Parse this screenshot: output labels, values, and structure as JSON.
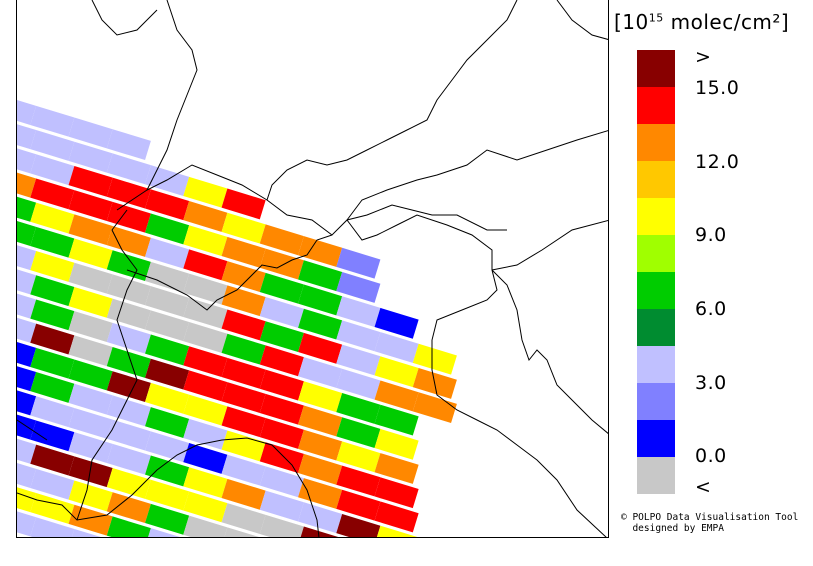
{
  "legend": {
    "unit_prefix": "[10",
    "unit_exp": "15",
    "unit_suffix": " molec/cm²]",
    "colors": [
      "#880000",
      "#ff0000",
      "#ff8800",
      "#ffc800",
      "#ffff00",
      "#a0ff00",
      "#00cc00",
      "#008c30",
      "#c0c0ff",
      "#8080ff",
      "#0000ff",
      "#c8c8c8"
    ],
    "ticks": [
      ">",
      "15.0",
      "12.0",
      "9.0",
      "6.0",
      "3.0",
      "0.0",
      "<"
    ]
  },
  "credit": {
    "line1": "© POLPO Data Visualisation Tool",
    "line2": "  designed by EMPA"
  },
  "swaths": [
    [
      "L",
      "L",
      "L",
      "L"
    ],
    [
      "L",
      "L",
      "L",
      "L",
      "L",
      "Y",
      "R"
    ],
    [
      "L",
      "L",
      "R",
      "R",
      "R",
      "O",
      "Y",
      "O",
      "O",
      "P"
    ],
    [
      "O",
      "R",
      "R",
      "R",
      "G",
      "Y",
      "O",
      "O",
      "G",
      "P"
    ],
    [
      "G",
      "Y",
      "O",
      "O",
      "L",
      "R",
      "O",
      "G",
      "G",
      "L",
      "B"
    ],
    [
      "G",
      "G",
      "Y",
      "G",
      "X",
      "X",
      "O",
      "L",
      "G",
      "L",
      "L",
      "Y"
    ],
    [
      "L",
      "Y",
      "X",
      "X",
      "X",
      "X",
      "R",
      "G",
      "R",
      "L",
      "Y",
      "O"
    ],
    [
      "L",
      "G",
      "Y",
      "X",
      "X",
      "X",
      "G",
      "R",
      "L",
      "L",
      "O",
      "O"
    ],
    [
      "L",
      "G",
      "X",
      "L",
      "G",
      "R",
      "R",
      "R",
      "Y",
      "G",
      "G"
    ],
    [
      "L",
      "D",
      "X",
      "G",
      "D",
      "R",
      "R",
      "R",
      "O",
      "G",
      "Y"
    ],
    [
      "B",
      "G",
      "G",
      "D",
      "Y",
      "Y",
      "R",
      "R",
      "O",
      "Y",
      "O"
    ],
    [
      "B",
      "G",
      "L",
      "L",
      "G",
      "L",
      "Y",
      "R",
      "O",
      "R",
      "R"
    ],
    [
      "B",
      "L",
      "L",
      "L",
      "L",
      "B",
      "L",
      "L",
      "O",
      "R",
      "R"
    ],
    [
      "B",
      "B",
      "L",
      "L",
      "G",
      "Y",
      "O",
      "L",
      "L",
      "D",
      "Y"
    ],
    [
      "L",
      "D",
      "D",
      "Y",
      "Y",
      "Y",
      "X",
      "X",
      "D",
      "G"
    ],
    [
      "L",
      "L",
      "Y",
      "O",
      "G",
      "X",
      "X",
      "G",
      "Y"
    ],
    [
      "Y",
      "Y",
      "O",
      "G",
      "L",
      "L",
      "Y"
    ],
    [
      "L",
      "L",
      "L"
    ]
  ]
}
